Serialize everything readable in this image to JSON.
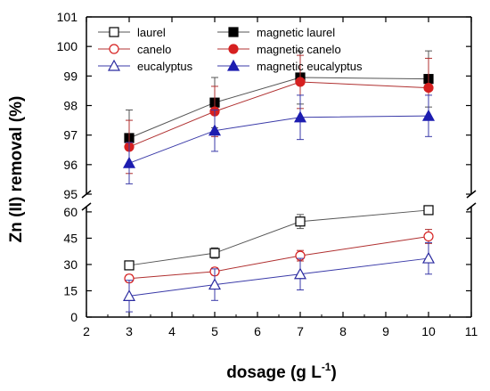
{
  "chart_data": {
    "type": "line",
    "xlabel": "dosage (g L",
    "xlabel_sup": "-1",
    "xlabel_close": ")",
    "ylabel": "Zn (II) removal (%)",
    "xlim": [
      2,
      11
    ],
    "x_ticks": [
      2,
      3,
      4,
      5,
      6,
      7,
      8,
      9,
      10,
      11
    ],
    "y_broken": true,
    "upper_ylim": [
      95,
      101
    ],
    "upper_ticks": [
      95,
      96,
      97,
      98,
      99,
      100,
      101
    ],
    "lower_ylim": [
      0,
      63
    ],
    "lower_ticks": [
      0,
      15,
      30,
      45,
      60
    ],
    "legend_position": "top-left",
    "x": [
      3,
      5,
      7,
      10
    ],
    "series": [
      {
        "name": "laurel",
        "panel": "lower",
        "marker": "square-open",
        "color": "#000000",
        "line_color": "#555555",
        "values": [
          29.5,
          36.5,
          54.5,
          61
        ],
        "errors": [
          2,
          3,
          4,
          2
        ]
      },
      {
        "name": "magnetic laurel",
        "panel": "upper",
        "marker": "square-filled",
        "color": "#000000",
        "line_color": "#555555",
        "values": [
          96.9,
          98.1,
          98.95,
          98.9
        ],
        "errors": [
          0.95,
          0.85,
          0.9,
          0.95
        ]
      },
      {
        "name": "canelo",
        "panel": "lower",
        "marker": "circle-open",
        "color": "#d62020",
        "line_color": "#b03030",
        "values": [
          22,
          26,
          35,
          46
        ],
        "errors": [
          2,
          2,
          3,
          4
        ]
      },
      {
        "name": "magnetic canelo",
        "panel": "upper",
        "marker": "circle-filled",
        "color": "#d62020",
        "line_color": "#b03030",
        "values": [
          96.6,
          97.8,
          98.8,
          98.6
        ],
        "errors": [
          0.9,
          0.85,
          0.9,
          1.0
        ]
      },
      {
        "name": "eucalyptus",
        "panel": "lower",
        "marker": "triangle-open",
        "color": "#2b2ba0",
        "line_color": "#3a3aa8",
        "values": [
          12,
          18.5,
          24.5,
          33.5
        ],
        "errors": [
          9,
          9,
          9,
          9
        ]
      },
      {
        "name": "magnetic eucalyptus",
        "panel": "upper",
        "marker": "triangle-filled",
        "color": "#1d1db0",
        "line_color": "#3a3aa8",
        "values": [
          96.05,
          97.15,
          97.6,
          97.65
        ],
        "errors": [
          0.7,
          0.7,
          0.75,
          0.7
        ]
      }
    ]
  }
}
